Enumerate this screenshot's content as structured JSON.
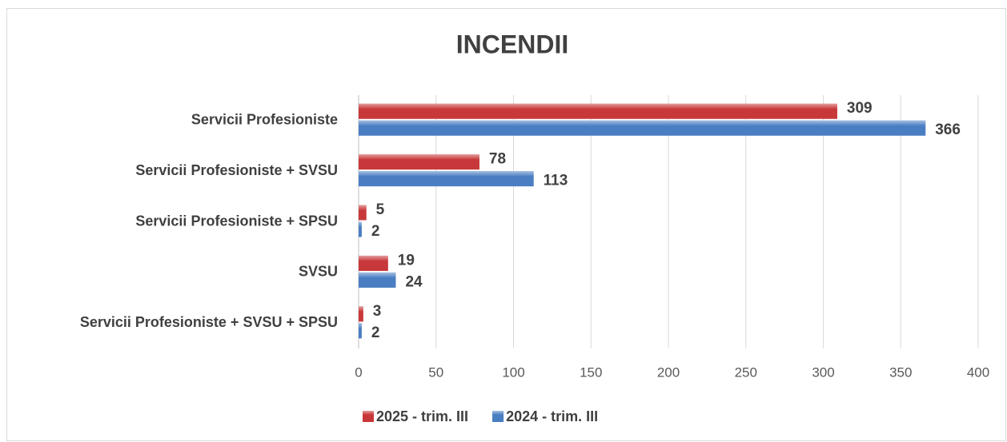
{
  "chart_data": {
    "type": "bar",
    "orientation": "horizontal",
    "title": "INCENDII",
    "categories": [
      "Servicii Profesioniste",
      "Servicii Profesioniste + SVSU",
      "Servicii Profesioniste + SPSU",
      "SVSU",
      "Servicii Profesioniste + SVSU + SPSU"
    ],
    "series": [
      {
        "name": "2025 - trim. III",
        "color": "#c8383a",
        "values": [
          309,
          78,
          5,
          19,
          3
        ]
      },
      {
        "name": "2024 - trim. III",
        "color": "#4a7ec2",
        "values": [
          366,
          113,
          2,
          24,
          2
        ]
      }
    ],
    "xlim": [
      0,
      400
    ],
    "xticks": [
      0,
      50,
      100,
      150,
      200,
      250,
      300,
      350,
      400
    ],
    "grid": true,
    "legend": "bottom"
  }
}
